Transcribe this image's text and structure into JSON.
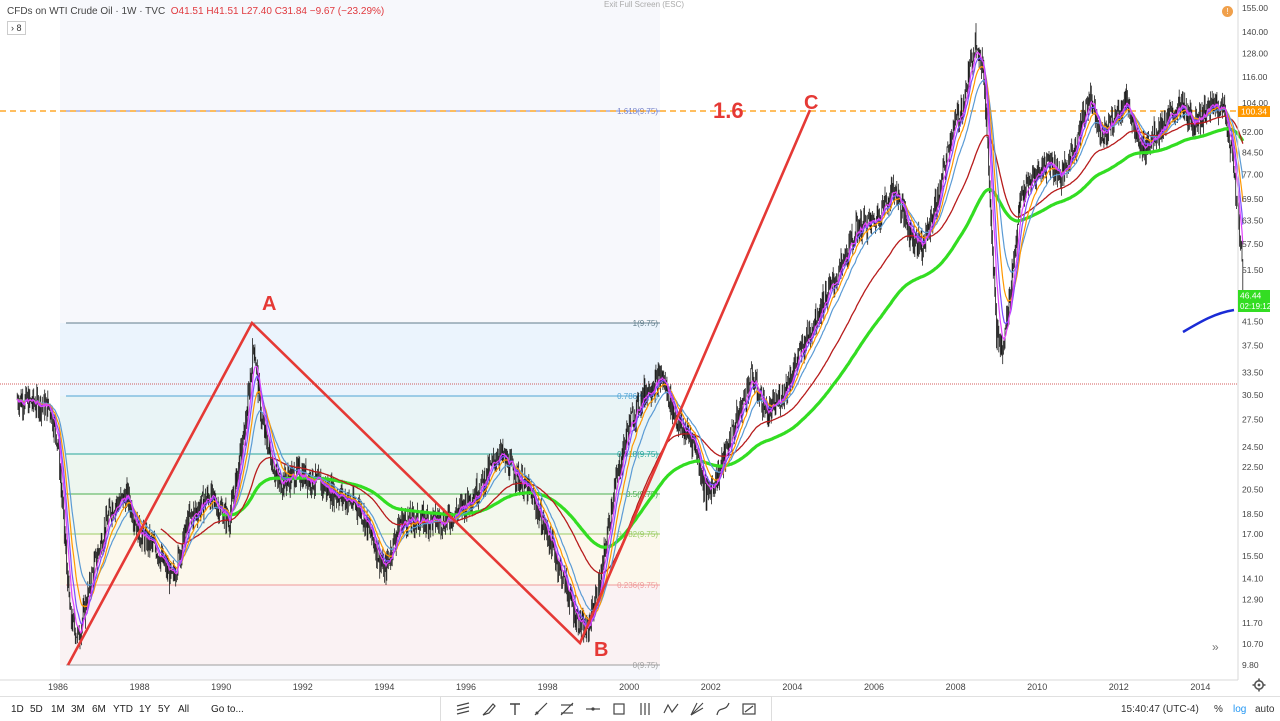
{
  "legend": {
    "title": "CFDs on WTI Crude Oil · 1W · TVC",
    "ohlc": "O41.51  H41.51  L27.40  C31.84  −9.67 (−23.29%)",
    "collapse": "› 8"
  },
  "exit_fullscreen": "Exit Full Screen (ESC)",
  "alert_icon": "!",
  "colors": {
    "candles": "#1e1e1e",
    "ema_fast": "#e040fb",
    "ema_b": "#7c4dff",
    "ema_c": "#ff9800",
    "ema_d": "#5b9bd5",
    "ma_red": "#b71c1c",
    "ma_green": "#33dd22",
    "pattern": "#e53935",
    "dashed": "#ff9800",
    "blue_seg": "#1a2bd6"
  },
  "chart_data": {
    "type": "candlestick",
    "y_scale": "log",
    "x_ticks": [
      "1986",
      "1988",
      "1990",
      "1992",
      "1994",
      "1996",
      "1998",
      "2000",
      "2002",
      "2004",
      "2006",
      "2008",
      "2010",
      "2012",
      "2014"
    ],
    "y_ticks": [
      "155.00",
      "140.00",
      "128.00",
      "116.00",
      "104.00",
      "92.00",
      "84.50",
      "77.00",
      "69.50",
      "63.50",
      "57.50",
      "51.50",
      "46.50",
      "41.50",
      "37.50",
      "33.50",
      "30.50",
      "27.50",
      "24.50",
      "22.50",
      "20.50",
      "18.50",
      "17.00",
      "15.50",
      "14.10",
      "12.90",
      "11.70",
      "10.70",
      "9.80"
    ],
    "price_tags": [
      {
        "label": "100.34",
        "color": "#ff9800"
      },
      {
        "label": "46.44",
        "color": "#33dd22"
      },
      {
        "label": "02:19:12",
        "color": "#33dd22"
      }
    ],
    "fib_labels": [
      "1.618(9.75)",
      "1(9.75)",
      "0.786(9.75)",
      "0.618(9.75)",
      "0.5(9.75)",
      "0.382(9.75)",
      "0.236(9.75)",
      "0(9.75)"
    ],
    "pattern_labels": {
      "a": "A",
      "b": "B",
      "c": "C",
      "ratio": "1.6"
    },
    "points": {
      "start": 9.8,
      "a": 41.5,
      "b": 10.7,
      "c": 100.34
    }
  },
  "bottombar": {
    "timeframes": [
      "1D",
      "5D",
      "1M",
      "3M",
      "6M",
      "YTD",
      "1Y",
      "5Y",
      "All"
    ],
    "goto": "Go to...",
    "time": "15:40:47 (UTC-4)",
    "pct": "%",
    "log": "log",
    "auto": "auto"
  },
  "toolbar_icons": [
    "trend-lines-icon",
    "brush-icon",
    "text-icon",
    "ray-icon",
    "fib-icon",
    "horizontal-line-icon",
    "rectangle-icon",
    "pitchfork-icon",
    "wave-icon",
    "gann-fan-icon",
    "path-icon",
    "forecast-icon"
  ]
}
